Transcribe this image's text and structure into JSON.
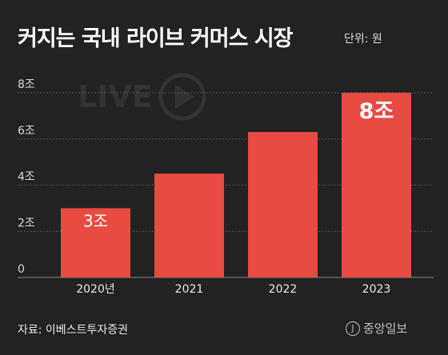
{
  "header": {
    "title": "커지는 국내 라이브 커머스 시장",
    "unit": "단위: 원"
  },
  "watermark": {
    "text": "LIVE",
    "icon": "play-icon"
  },
  "footer": {
    "source": "자료: 이베스트투자증권",
    "brand": "중앙일보",
    "brand_icon_glyph": "J"
  },
  "colors": {
    "background": "#222222",
    "bar": "#e84b42",
    "grid": "#666666",
    "text": "#ffffff"
  },
  "chart_data": {
    "type": "bar",
    "title": "커지는 국내 라이브 커머스 시장",
    "xlabel": "",
    "ylabel": "",
    "unit": "원",
    "categories": [
      "2020년",
      "2021",
      "2022",
      "2023"
    ],
    "values": [
      3,
      4.5,
      6.3,
      8
    ],
    "data_labels": [
      "3조",
      "",
      "",
      "8조"
    ],
    "y_ticks": [
      0,
      2,
      4,
      6,
      8
    ],
    "y_tick_labels": [
      "0",
      "2조",
      "4조",
      "6조",
      "8조"
    ],
    "ylim": [
      0,
      8
    ],
    "grid": true,
    "legend": "none"
  }
}
